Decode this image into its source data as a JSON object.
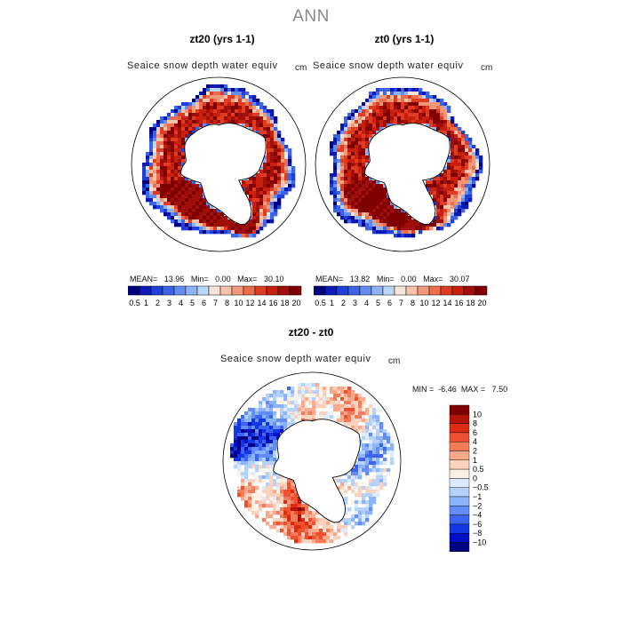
{
  "page": {
    "title": "ANN"
  },
  "panels": [
    {
      "title": "zt20 (yrs 1-1)",
      "variable": "Seaice snow depth water equiv",
      "units": "cm",
      "mean_label": "MEAN=",
      "mean": "13.96",
      "min_label": "Min=",
      "min": "0.00",
      "max_label": "Max=",
      "max": "30.10"
    },
    {
      "title": "zt0 (yrs 1-1)",
      "variable": "Seaice snow depth water equiv",
      "units": "cm",
      "mean_label": "MEAN=",
      "mean": "13.82",
      "min_label": "Min=",
      "min": "0.00",
      "max_label": "Max=",
      "max": "30.07"
    }
  ],
  "diff": {
    "title": "zt20 - zt0",
    "variable": "Seaice snow depth water equiv",
    "units": "cm",
    "min_label": "MIN =",
    "min": "-6.46",
    "max_label": "MAX =",
    "max": "7.50"
  },
  "colors": {
    "abs_scale": [
      "#000080",
      "#0a1ab4",
      "#1e40d8",
      "#3c64e6",
      "#648cf0",
      "#8cb4f5",
      "#bcd6fa",
      "#f7e4d8",
      "#f6c2aa",
      "#f2987a",
      "#ec6c4e",
      "#e03c22",
      "#c8200c",
      "#a0100a",
      "#800000"
    ],
    "diff_scale": [
      "#000080",
      "#0010c8",
      "#1437e6",
      "#3c64f0",
      "#648cf5",
      "#8cb4fa",
      "#b4d2fc",
      "#dcebfd",
      "#fdf0e4",
      "#fcd2bc",
      "#f9aa8c",
      "#f57c5a",
      "#ee5030",
      "#dc2c14",
      "#b41408",
      "#800000"
    ]
  },
  "chart_data": [
    {
      "type": "heatmap",
      "title": "zt20 (yrs 1-1)",
      "legend_position": "bottom",
      "colorbar_ticks": [
        "0.5",
        "1",
        "2",
        "3",
        "4",
        "5",
        "6",
        "7",
        "8",
        "10",
        "12",
        "14",
        "16",
        "18",
        "20"
      ]
    },
    {
      "type": "heatmap",
      "title": "zt0 (yrs 1-1)",
      "legend_position": "bottom",
      "colorbar_ticks": [
        "0.5",
        "1",
        "2",
        "3",
        "4",
        "5",
        "6",
        "7",
        "8",
        "10",
        "12",
        "14",
        "16",
        "18",
        "20"
      ]
    },
    {
      "type": "heatmap",
      "title": "zt20 - zt0",
      "legend_position": "right",
      "colorbar_ticks": [
        "10",
        "8",
        "6",
        "4",
        "2",
        "1",
        "0.5",
        "0",
        "−0.5",
        "−1",
        "−2",
        "−4",
        "−6",
        "−8",
        "−10"
      ]
    }
  ]
}
